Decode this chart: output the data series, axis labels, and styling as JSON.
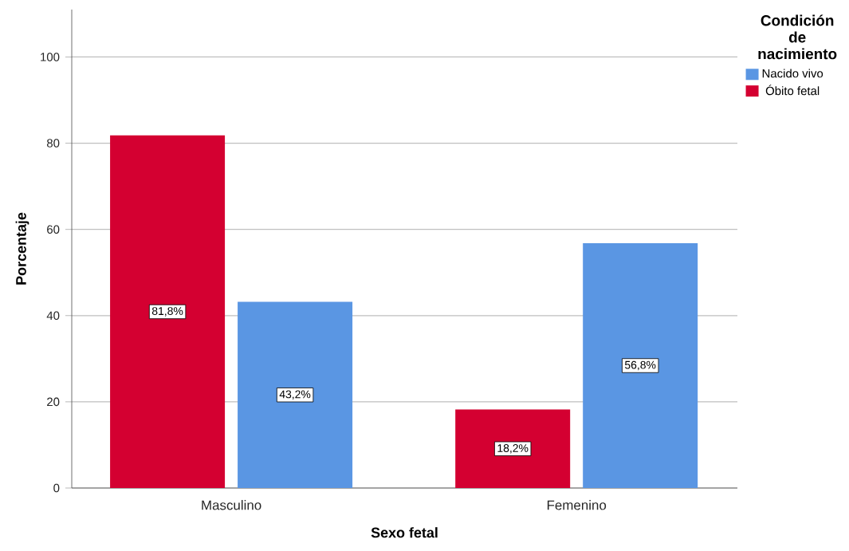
{
  "chart_data": {
    "type": "bar",
    "xlabel": "Sexo fetal",
    "ylabel": "Porcentaje",
    "legend_title": "Condición de nacimiento",
    "categories": [
      "Masculino",
      "Femenino"
    ],
    "series": [
      {
        "name": "Óbito fetal",
        "color": "#d40031",
        "values": [
          81.8,
          18.2
        ],
        "value_labels": [
          "81,8%",
          "18,2%"
        ]
      },
      {
        "name": "Nacido vivo",
        "color": "#5a96e3",
        "values": [
          43.2,
          56.8
        ],
        "value_labels": [
          "43,2%",
          "56,8%"
        ]
      }
    ],
    "ylim": [
      0,
      111
    ],
    "yticks": [
      0,
      20,
      40,
      60,
      80,
      100
    ],
    "grid": "y",
    "legend": "top right"
  }
}
